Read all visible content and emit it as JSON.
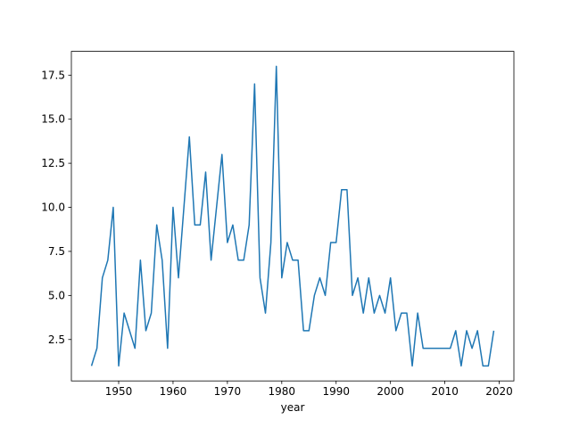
{
  "chart_data": {
    "type": "line",
    "title": "",
    "xlabel": "year",
    "ylabel": "",
    "grid": false,
    "legend": null,
    "line_color": "#1f77b4",
    "line_width": 1.5,
    "spine_color": "#000000",
    "background_color": "#ffffff",
    "xlim": [
      1941.3,
      2022.7
    ],
    "ylim": [
      0.15,
      18.85
    ],
    "x_ticks": [
      {
        "value": 1950,
        "label": "1950"
      },
      {
        "value": 1960,
        "label": "1960"
      },
      {
        "value": 1970,
        "label": "1970"
      },
      {
        "value": 1980,
        "label": "1980"
      },
      {
        "value": 1990,
        "label": "1990"
      },
      {
        "value": 2000,
        "label": "2000"
      },
      {
        "value": 2010,
        "label": "2010"
      },
      {
        "value": 2020,
        "label": "2020"
      }
    ],
    "y_ticks": [
      {
        "value": 2.5,
        "label": "2.5"
      },
      {
        "value": 5.0,
        "label": "5.0"
      },
      {
        "value": 7.5,
        "label": "7.5"
      },
      {
        "value": 10.0,
        "label": "10.0"
      },
      {
        "value": 12.5,
        "label": "12.5"
      },
      {
        "value": 15.0,
        "label": "15.0"
      },
      {
        "value": 17.5,
        "label": "17.5"
      }
    ],
    "x": [
      1945,
      1946,
      1947,
      1948,
      1949,
      1950,
      1951,
      1952,
      1953,
      1954,
      1955,
      1956,
      1957,
      1958,
      1959,
      1960,
      1961,
      1962,
      1963,
      1964,
      1965,
      1966,
      1967,
      1968,
      1969,
      1970,
      1971,
      1972,
      1973,
      1974,
      1975,
      1976,
      1977,
      1978,
      1979,
      1980,
      1981,
      1982,
      1983,
      1984,
      1985,
      1986,
      1987,
      1988,
      1989,
      1990,
      1991,
      1992,
      1993,
      1994,
      1995,
      1996,
      1997,
      1998,
      1999,
      2000,
      2001,
      2002,
      2003,
      2004,
      2005,
      2006,
      2007,
      2008,
      2009,
      2010,
      2011,
      2012,
      2013,
      2014,
      2015,
      2016,
      2017,
      2018,
      2019
    ],
    "values": [
      1,
      2,
      6,
      7,
      10,
      1,
      4,
      3,
      2,
      7,
      3,
      4,
      9,
      7,
      2,
      10,
      6,
      10,
      14,
      9,
      9,
      12,
      7,
      10,
      13,
      8,
      9,
      7,
      7,
      9,
      17,
      6,
      4,
      8,
      18,
      6,
      8,
      7,
      7,
      3,
      3,
      5,
      6,
      5,
      8,
      8,
      11,
      11,
      5,
      6,
      4,
      6,
      4,
      5,
      4,
      6,
      3,
      4,
      4,
      1,
      4,
      2,
      2,
      2,
      2,
      2,
      2,
      3,
      1,
      3,
      2,
      3,
      1,
      1,
      3
    ]
  }
}
